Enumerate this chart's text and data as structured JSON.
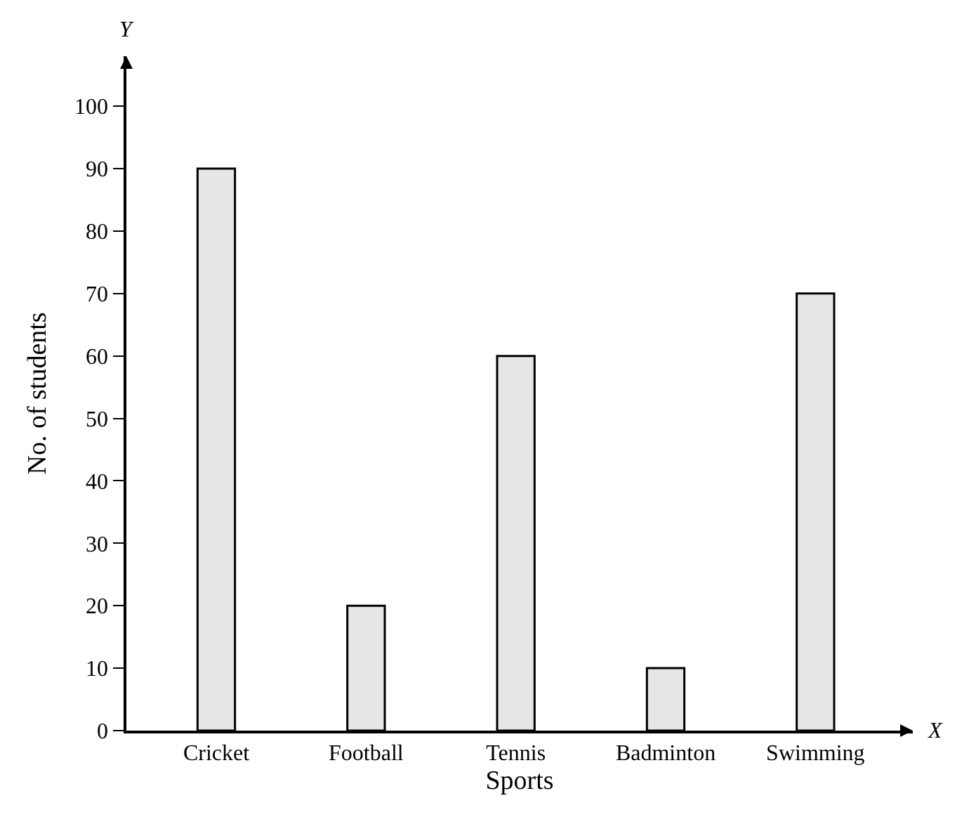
{
  "chart_data": {
    "type": "bar",
    "xlabel": "Sports",
    "ylabel": "No. of students",
    "categories": [
      "Cricket",
      "Football",
      "Tennis",
      "Badminton",
      "Swimming"
    ],
    "values": [
      90,
      20,
      60,
      10,
      70
    ],
    "color": "#e6e6e6",
    "ylim": [
      0,
      108
    ],
    "yticks": [
      0,
      10,
      20,
      30,
      40,
      50,
      60,
      70,
      80,
      90,
      100
    ],
    "legend": false,
    "annotations": [
      "X",
      "Y"
    ]
  }
}
